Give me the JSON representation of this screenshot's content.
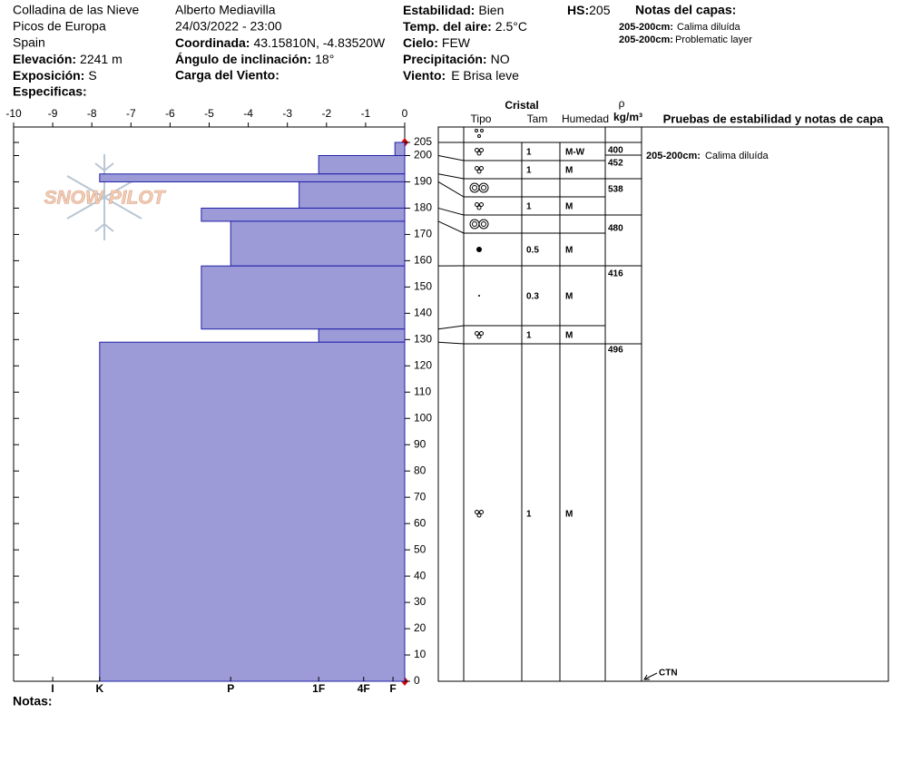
{
  "header": {
    "location": [
      "Colladina de las Nieve",
      "Picos de Europa",
      "Spain"
    ],
    "observer": "Alberto Mediavilla",
    "datetime": "24/03/2022 - 23:00",
    "fields": [
      {
        "label": "Elevación:",
        "value": "2241 m"
      },
      {
        "label": "Exposición:",
        "value": "S"
      },
      {
        "label": "Especificas:"
      },
      {
        "label": "Coordinada:",
        "value": "43.15810N, -4.83520W"
      },
      {
        "label": "Ángulo de inclinación:",
        "value": "18°"
      },
      {
        "label": "Carga del Viento:"
      },
      {
        "label": "Estabilidad:",
        "value": "Bien"
      },
      {
        "label": "Temp. del aire:",
        "value": "2.5°C"
      },
      {
        "label": "Cielo:",
        "value": "FEW"
      },
      {
        "label": "Precipitación:",
        "value": "NO"
      },
      {
        "label": "Viento:",
        "value": "E Brisa leve"
      },
      {
        "label": "HS:",
        "value": 205
      }
    ],
    "notes_title": "Notas del capas:",
    "layer_notes": [
      {
        "depth": "205-200cm:",
        "text": "Calima diluída"
      },
      {
        "depth": "205-200cm:",
        "text": "Problematic layer"
      }
    ],
    "notes_label": "Notas:",
    "watermark": "SNOW PILOT"
  },
  "chart_data": {
    "type": "hbar",
    "layers": {
      "top": [
        205,
        200,
        193,
        190,
        180,
        175,
        158,
        134,
        129
      ],
      "bottom": [
        200,
        193,
        190,
        180,
        175,
        158,
        134,
        129,
        0
      ]
    },
    "values": [
      -0.25,
      -2.2,
      -7.8,
      -2.7,
      -5.2,
      -4.45,
      -5.2,
      -2.2,
      -7.8
    ],
    "color": "#9c9bd8",
    "edge_color": "#2020a8",
    "xlim": [
      -10,
      0
    ],
    "xticks": [
      -10,
      -9,
      -8,
      -7,
      -6,
      -5,
      -4,
      -3,
      -2,
      -1,
      0
    ],
    "hardness_ticks": [
      {
        "value": -9,
        "label": "I"
      },
      {
        "value": -7.8,
        "label": "K"
      },
      {
        "value": -4.45,
        "label": "P"
      },
      {
        "value": -2.2,
        "label": "1F"
      },
      {
        "value": -1.05,
        "label": "4F"
      },
      {
        "value": -0.3,
        "label": "F"
      }
    ],
    "ylim": [
      0,
      205
    ],
    "yticks": [
      0,
      10,
      20,
      30,
      40,
      50,
      60,
      70,
      80,
      90,
      100,
      110,
      120,
      130,
      140,
      150,
      160,
      170,
      180,
      190,
      200,
      205
    ]
  },
  "table": {
    "title": "Cristal",
    "headers": [
      "Tipo",
      "Tam",
      "Humedad"
    ],
    "density_symbol": "ρ",
    "density_unit": "kg/m³",
    "tests_title": "Pruebas de estabilidad y notas de capa",
    "rows": [
      {
        "tam": 1,
        "humedad": "M-W"
      },
      {
        "tam": 1,
        "humedad": "M"
      },
      {},
      {
        "tam": 1,
        "humedad": "M"
      },
      {},
      {
        "tam": 0.5,
        "humedad": "M"
      },
      {
        "tam": 0.3,
        "humedad": "M"
      },
      {
        "tam": 1,
        "humedad": "M"
      },
      {
        "tam": 1,
        "humedad": "M"
      }
    ],
    "densities": [
      400,
      452,
      538,
      480,
      416,
      496
    ],
    "test_notes": [
      {
        "depth": "205-200cm:",
        "text": "Calima diluída"
      }
    ],
    "ctn": "CTN"
  }
}
